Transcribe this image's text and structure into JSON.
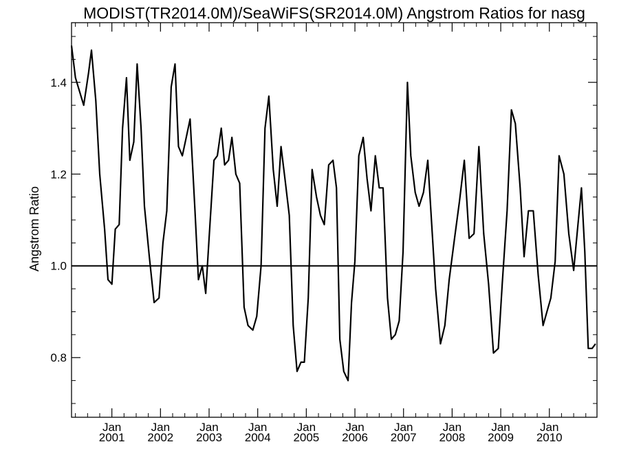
{
  "chart_data": {
    "type": "line",
    "title": "MODIST(TR2014.0M)/SeaWiFS(SR2014.0M)  Angstrom Ratios for nasg",
    "xlabel": "",
    "ylabel": "Angstrom Ratio",
    "xlim": [
      2000.17,
      2010.98
    ],
    "ylim": [
      0.67,
      1.53
    ],
    "yticks": [
      {
        "value": 0.8,
        "label": "0.8"
      },
      {
        "value": 1.0,
        "label": "1.0"
      },
      {
        "value": 1.2,
        "label": "1.2"
      },
      {
        "value": 1.4,
        "label": "1.4"
      }
    ],
    "xticks": [
      {
        "value": 2001.0,
        "month": "Jan",
        "year": "2001"
      },
      {
        "value": 2002.0,
        "month": "Jan",
        "year": "2002"
      },
      {
        "value": 2003.0,
        "month": "Jan",
        "year": "2003"
      },
      {
        "value": 2004.0,
        "month": "Jan",
        "year": "2004"
      },
      {
        "value": 2005.0,
        "month": "Jan",
        "year": "2005"
      },
      {
        "value": 2006.0,
        "month": "Jan",
        "year": "2006"
      },
      {
        "value": 2007.0,
        "month": "Jan",
        "year": "2007"
      },
      {
        "value": 2008.0,
        "month": "Jan",
        "year": "2008"
      },
      {
        "value": 2009.0,
        "month": "Jan",
        "year": "2009"
      },
      {
        "value": 2010.0,
        "month": "Jan",
        "year": "2010"
      }
    ],
    "reference_line": 1.0,
    "series": [
      {
        "x": [
          2000.17,
          2000.25,
          2000.42,
          2000.52,
          2000.58,
          2000.67,
          2000.75,
          2000.85,
          2000.92,
          2001.0,
          2001.07,
          2001.15,
          2001.22,
          2001.3,
          2001.37,
          2001.45,
          2001.52,
          2001.6,
          2001.67,
          2001.77,
          2001.87,
          2001.97,
          2002.05,
          2002.13,
          2002.22,
          2002.3,
          2002.37,
          2002.45,
          2002.53,
          2002.61,
          2002.71,
          2002.78,
          2002.86,
          2002.93,
          2003.0,
          2003.1,
          2003.17,
          2003.25,
          2003.32,
          2003.4,
          2003.47,
          2003.55,
          2003.63,
          2003.72,
          2003.8,
          2003.9,
          2003.98,
          2004.07,
          2004.15,
          2004.23,
          2004.32,
          2004.4,
          2004.48,
          2004.56,
          2004.65,
          2004.73,
          2004.81,
          2004.89,
          2004.96,
          2005.04,
          2005.12,
          2005.21,
          2005.29,
          2005.37,
          2005.46,
          2005.55,
          2005.62,
          2005.69,
          2005.77,
          2005.86,
          2005.93,
          2006.0,
          2006.08,
          2006.17,
          2006.25,
          2006.33,
          2006.42,
          2006.5,
          2006.58,
          2006.67,
          2006.75,
          2006.83,
          2006.91,
          2006.99,
          2007.08,
          2007.15,
          2007.24,
          2007.32,
          2007.41,
          2007.5,
          2007.58,
          2007.66,
          2007.76,
          2007.85,
          2007.94,
          2008.05,
          2008.15,
          2008.25,
          2008.35,
          2008.45,
          2008.55,
          2008.65,
          2008.75,
          2008.85,
          2008.95,
          2009.03,
          2009.13,
          2009.22,
          2009.3,
          2009.4,
          2009.48,
          2009.57,
          2009.67,
          2009.77,
          2009.87,
          2009.95,
          2010.03,
          2010.12,
          2010.2,
          2010.3,
          2010.4,
          2010.5,
          2010.58,
          2010.66,
          2010.73,
          2010.8,
          2010.88,
          2010.95
        ],
        "y": [
          1.48,
          1.41,
          1.35,
          1.42,
          1.47,
          1.36,
          1.2,
          1.08,
          0.97,
          0.96,
          1.08,
          1.09,
          1.3,
          1.41,
          1.23,
          1.27,
          1.44,
          1.3,
          1.13,
          1.02,
          0.92,
          0.93,
          1.05,
          1.12,
          1.39,
          1.44,
          1.26,
          1.24,
          1.28,
          1.32,
          1.12,
          0.97,
          1.0,
          0.94,
          1.06,
          1.23,
          1.24,
          1.3,
          1.22,
          1.23,
          1.28,
          1.2,
          1.18,
          0.91,
          0.87,
          0.86,
          0.89,
          1.0,
          1.3,
          1.37,
          1.21,
          1.13,
          1.26,
          1.19,
          1.11,
          0.87,
          0.77,
          0.79,
          0.79,
          0.93,
          1.21,
          1.15,
          1.11,
          1.09,
          1.22,
          1.23,
          1.17,
          0.84,
          0.77,
          0.75,
          0.92,
          1.01,
          1.24,
          1.28,
          1.19,
          1.12,
          1.24,
          1.17,
          1.17,
          0.93,
          0.84,
          0.85,
          0.88,
          1.03,
          1.4,
          1.24,
          1.16,
          1.13,
          1.16,
          1.23,
          1.09,
          0.95,
          0.83,
          0.87,
          0.97,
          1.06,
          1.14,
          1.23,
          1.06,
          1.07,
          1.26,
          1.07,
          0.96,
          0.81,
          0.82,
          0.96,
          1.12,
          1.34,
          1.31,
          1.17,
          1.02,
          1.12,
          1.12,
          0.98,
          0.87,
          0.9,
          0.93,
          1.01,
          1.24,
          1.2,
          1.07,
          0.99,
          1.08,
          1.17,
          1.03,
          0.82,
          0.82,
          0.83
        ]
      }
    ]
  }
}
